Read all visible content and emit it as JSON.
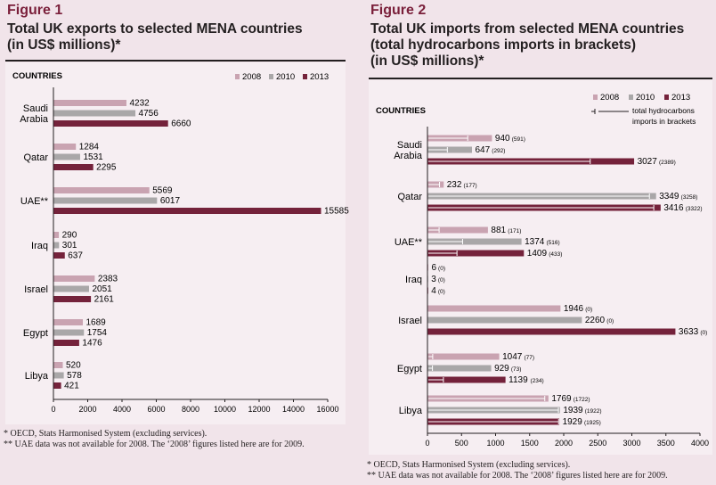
{
  "figure1": {
    "label": "Figure 1",
    "title_line1": "Total UK exports to selected MENA countries",
    "title_line2": "(in US$ millions)*",
    "countries_label": "COUNTRIES",
    "legend": [
      "2008",
      "2010",
      "2013"
    ],
    "footnote1": "*  OECD, Stats Harmonised System (excluding services).",
    "footnote2": "** UAE data was not available for 2008. The ‘2008’ figures listed here are for 2009."
  },
  "figure2": {
    "label": "Figure 2",
    "title_line1": "Total UK imports from selected MENA countries",
    "title_line2": "(total hydrocarbons imports in brackets)",
    "title_line3": "(in US$ millions)*",
    "countries_label": "COUNTRIES",
    "legend": [
      "2008",
      "2010",
      "2013"
    ],
    "hydro_legend_line1": "total hydrocarbons",
    "hydro_legend_line2": "imports in brackets",
    "footnote1": "*  OECD, Stats Harmonised System (excluding services).",
    "footnote2": "** UAE data was not available for 2008. The ‘2008’ figures listed here are for 2009."
  },
  "colors": {
    "y2008": "#c9a3b1",
    "y2010": "#a9a7a8",
    "y2013": "#74223b",
    "accent": "#7a1f3a"
  },
  "chart_data": [
    {
      "type": "bar",
      "orientation": "horizontal",
      "categories": [
        "Saudi Arabia",
        "Qatar",
        "UAE**",
        "Iraq",
        "Israel",
        "Egypt",
        "Libya"
      ],
      "category_labels": [
        [
          "Saudi",
          "Arabia"
        ],
        [
          "Qatar"
        ],
        [
          "UAE**"
        ],
        [
          "Iraq"
        ],
        [
          "Israel"
        ],
        [
          "Egypt"
        ],
        [
          "Libya"
        ]
      ],
      "series": [
        {
          "name": "2008",
          "values": [
            4232,
            1284,
            5569,
            290,
            2383,
            1689,
            520
          ]
        },
        {
          "name": "2010",
          "values": [
            4756,
            1531,
            6017,
            301,
            2051,
            1754,
            578
          ]
        },
        {
          "name": "2013",
          "values": [
            6660,
            2295,
            15585,
            637,
            2161,
            1476,
            421
          ]
        }
      ],
      "xlim": [
        0,
        16000
      ],
      "xticks": [
        0,
        2000,
        4000,
        6000,
        8000,
        10000,
        12000,
        14000,
        16000
      ],
      "legend_position": "top-right"
    },
    {
      "type": "bar",
      "orientation": "horizontal",
      "categories": [
        "Saudi Arabia",
        "Qatar",
        "UAE**",
        "Iraq",
        "Israel",
        "Egypt",
        "Libya"
      ],
      "category_labels": [
        [
          "Saudi",
          "Arabia"
        ],
        [
          "Qatar"
        ],
        [
          "UAE**"
        ],
        [
          "Iraq"
        ],
        [
          "Israel"
        ],
        [
          "Egypt"
        ],
        [
          "Libya"
        ]
      ],
      "series": [
        {
          "name": "2008",
          "values": [
            940,
            232,
            881,
            6,
            1946,
            1047,
            1769
          ],
          "hydrocarbons": [
            591,
            177,
            171,
            0,
            0,
            77,
            1722
          ]
        },
        {
          "name": "2010",
          "values": [
            647,
            3349,
            1374,
            3,
            2260,
            929,
            1939
          ],
          "hydrocarbons": [
            292,
            3258,
            516,
            0,
            0,
            73,
            1922
          ]
        },
        {
          "name": "2013",
          "values": [
            3027,
            3416,
            1409,
            4,
            3633,
            1139,
            1929
          ],
          "hydrocarbons": [
            2389,
            3322,
            433,
            0,
            0,
            234,
            1925
          ]
        }
      ],
      "xlim": [
        0,
        4000
      ],
      "xticks": [
        0,
        500,
        1000,
        1500,
        2000,
        2500,
        3000,
        3500,
        4000
      ],
      "legend_position": "top-right"
    }
  ]
}
